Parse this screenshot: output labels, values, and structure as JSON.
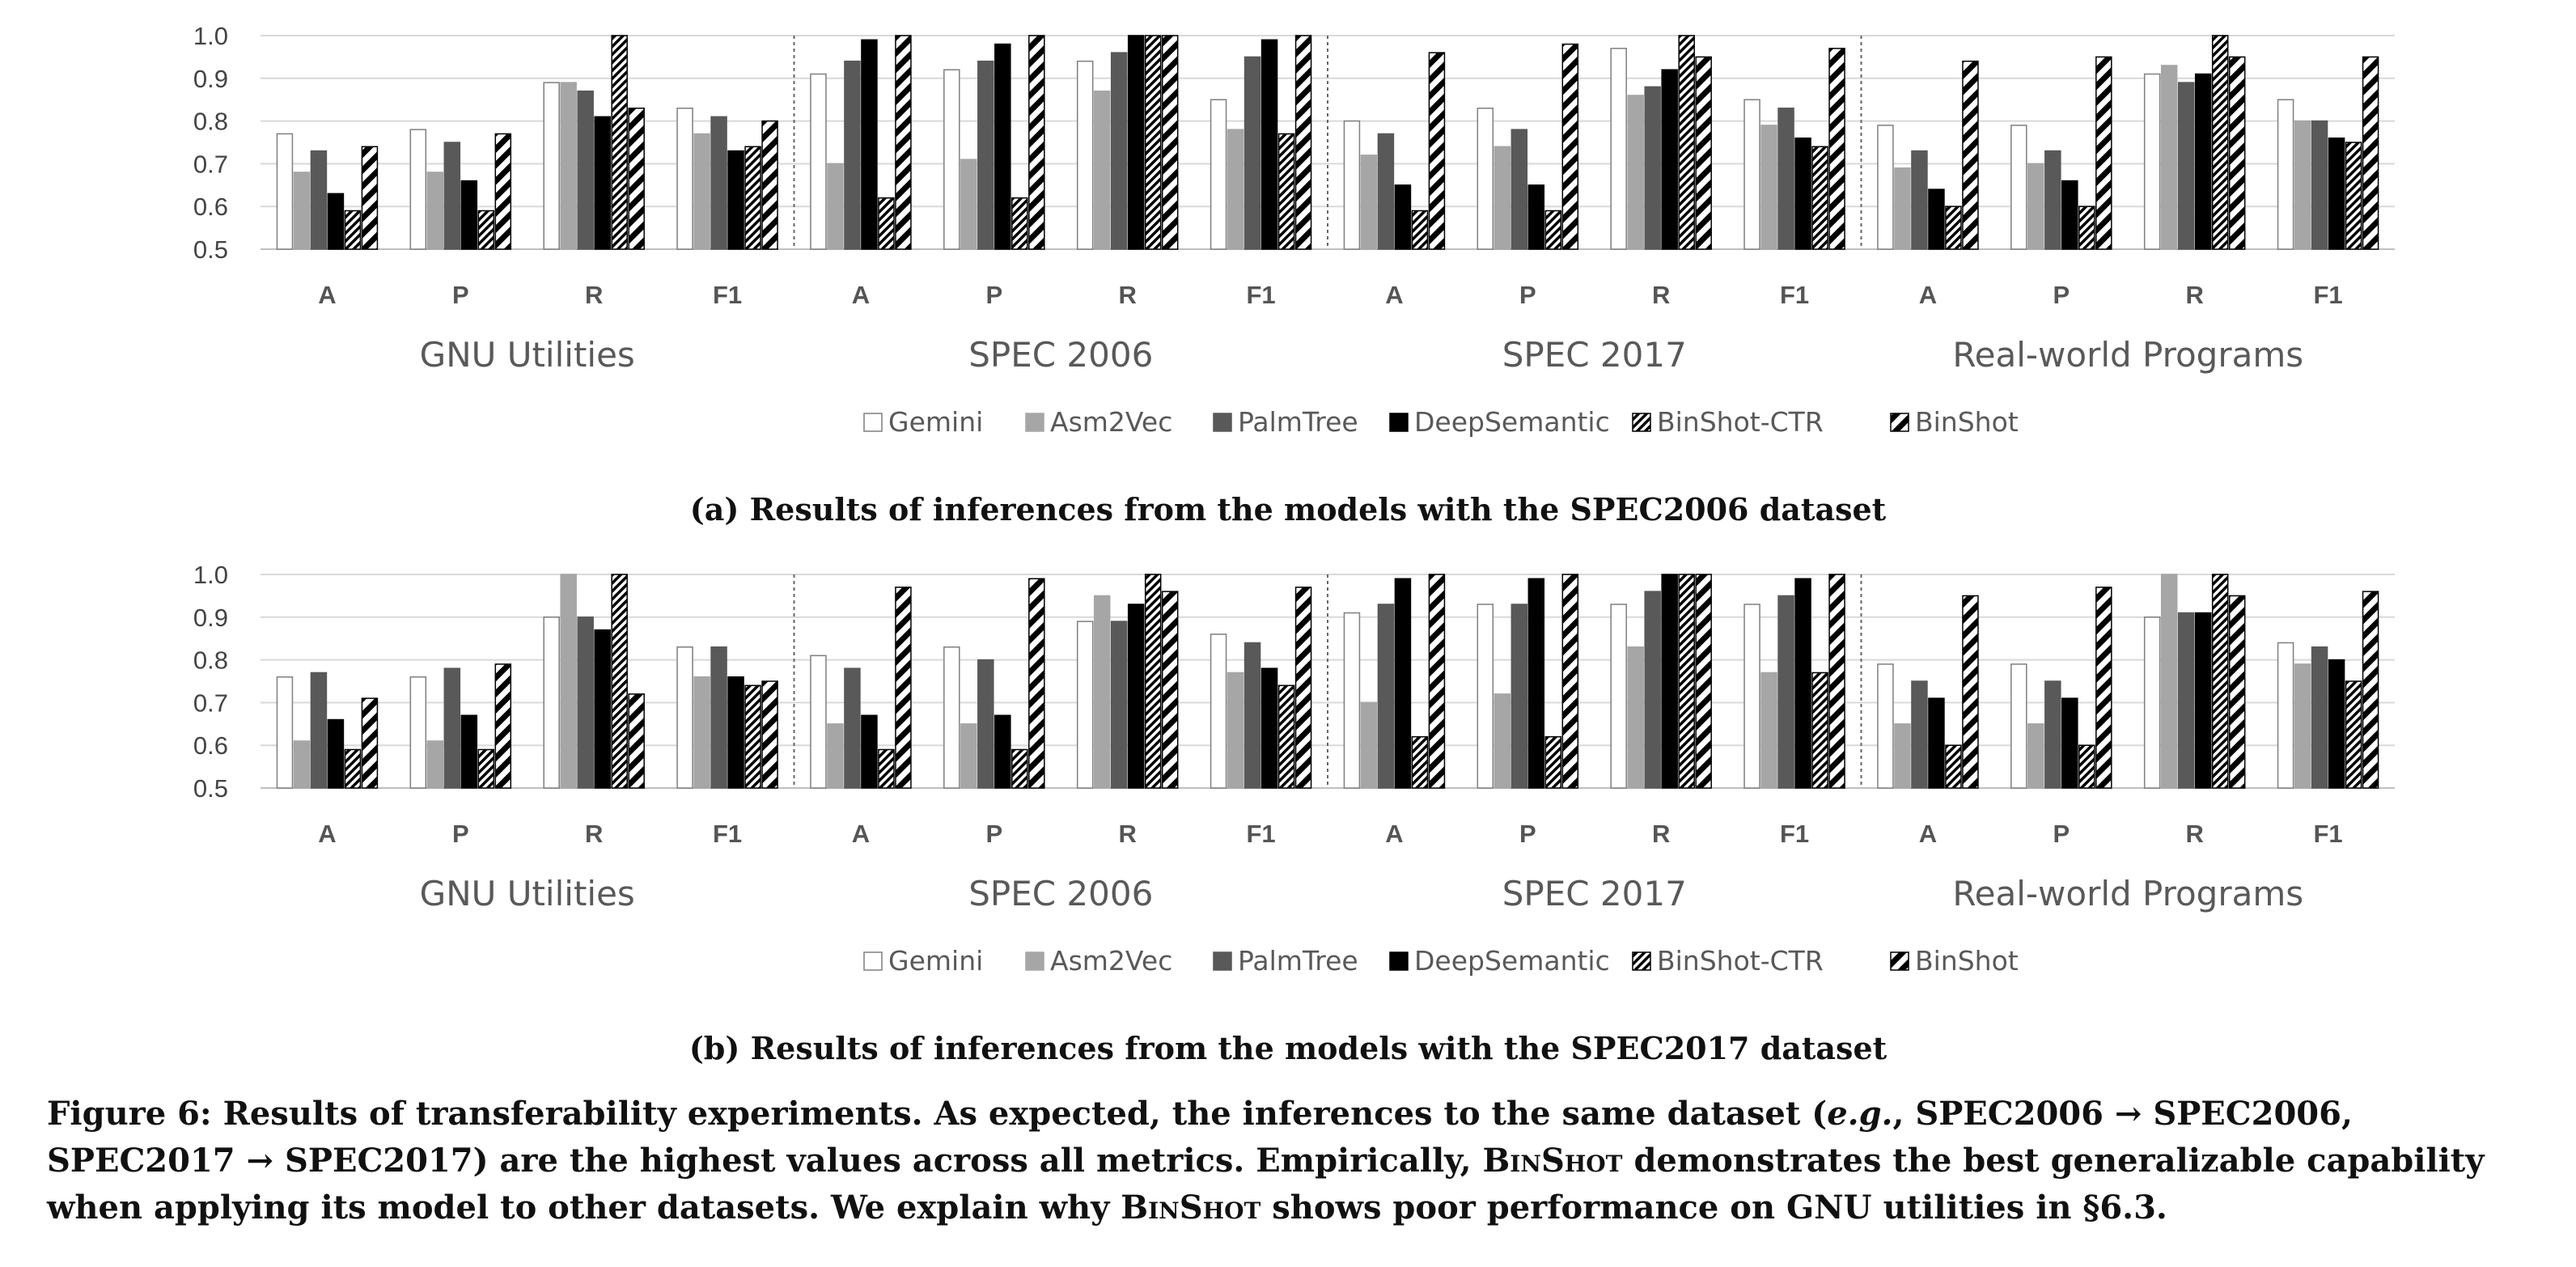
{
  "chart_data": [
    {
      "type": "bar",
      "title": "(a) Results of inferences from the models with the SPEC2006 dataset",
      "ylim": [
        0.5,
        1.0
      ],
      "yticks": [
        "0.5",
        "0.6",
        "0.7",
        "0.8",
        "0.9",
        "1.0"
      ],
      "groups": [
        "GNU Utilities",
        "SPEC 2006",
        "SPEC 2017",
        "Real-world Programs"
      ],
      "categories": [
        "A",
        "P",
        "R",
        "F1"
      ],
      "legend_position": "bottom",
      "grid": true,
      "series": [
        {
          "name": "Gemini",
          "values": [
            [
              0.77,
              0.78,
              0.89,
              0.83
            ],
            [
              0.91,
              0.92,
              0.94,
              0.85
            ],
            [
              0.8,
              0.83,
              0.97,
              0.85
            ],
            [
              0.79,
              0.79,
              0.91,
              0.85
            ]
          ]
        },
        {
          "name": "Asm2Vec",
          "values": [
            [
              0.68,
              0.68,
              0.89,
              0.77
            ],
            [
              0.7,
              0.71,
              0.87,
              0.78
            ],
            [
              0.72,
              0.74,
              0.86,
              0.79
            ],
            [
              0.69,
              0.7,
              0.93,
              0.8
            ]
          ]
        },
        {
          "name": "PalmTree",
          "values": [
            [
              0.73,
              0.75,
              0.87,
              0.81
            ],
            [
              0.94,
              0.94,
              0.96,
              0.95
            ],
            [
              0.77,
              0.78,
              0.88,
              0.83
            ],
            [
              0.73,
              0.73,
              0.89,
              0.8
            ]
          ]
        },
        {
          "name": "DeepSemantic",
          "values": [
            [
              0.63,
              0.66,
              0.81,
              0.73
            ],
            [
              0.99,
              0.98,
              1.0,
              0.99
            ],
            [
              0.65,
              0.65,
              0.92,
              0.76
            ],
            [
              0.64,
              0.66,
              0.91,
              0.76
            ]
          ]
        },
        {
          "name": "BinShot-CTR",
          "values": [
            [
              0.59,
              0.59,
              1.0,
              0.74
            ],
            [
              0.62,
              0.62,
              1.0,
              0.77
            ],
            [
              0.59,
              0.59,
              1.0,
              0.74
            ],
            [
              0.6,
              0.6,
              1.0,
              0.75
            ]
          ]
        },
        {
          "name": "BinShot",
          "values": [
            [
              0.74,
              0.77,
              0.83,
              0.8
            ],
            [
              1.0,
              1.0,
              1.0,
              1.0
            ],
            [
              0.96,
              0.98,
              0.95,
              0.97
            ],
            [
              0.94,
              0.95,
              0.95,
              0.95
            ]
          ]
        }
      ]
    },
    {
      "type": "bar",
      "title": "(b) Results of inferences from the models with the SPEC2017 dataset",
      "ylim": [
        0.5,
        1.0
      ],
      "yticks": [
        "0.5",
        "0.6",
        "0.7",
        "0.8",
        "0.9",
        "1.0"
      ],
      "groups": [
        "GNU Utilities",
        "SPEC 2006",
        "SPEC 2017",
        "Real-world Programs"
      ],
      "categories": [
        "A",
        "P",
        "R",
        "F1"
      ],
      "legend_position": "bottom",
      "grid": true,
      "series": [
        {
          "name": "Gemini",
          "values": [
            [
              0.76,
              0.76,
              0.9,
              0.83
            ],
            [
              0.81,
              0.83,
              0.89,
              0.86
            ],
            [
              0.91,
              0.93,
              0.93,
              0.93
            ],
            [
              0.79,
              0.79,
              0.9,
              0.84
            ]
          ]
        },
        {
          "name": "Asm2Vec",
          "values": [
            [
              0.61,
              0.61,
              1.0,
              0.76
            ],
            [
              0.65,
              0.65,
              0.95,
              0.77
            ],
            [
              0.7,
              0.72,
              0.83,
              0.77
            ],
            [
              0.65,
              0.65,
              1.0,
              0.79
            ]
          ]
        },
        {
          "name": "PalmTree",
          "values": [
            [
              0.77,
              0.78,
              0.9,
              0.83
            ],
            [
              0.78,
              0.8,
              0.89,
              0.84
            ],
            [
              0.93,
              0.93,
              0.96,
              0.95
            ],
            [
              0.75,
              0.75,
              0.91,
              0.83
            ]
          ]
        },
        {
          "name": "DeepSemantic",
          "values": [
            [
              0.66,
              0.67,
              0.87,
              0.76
            ],
            [
              0.67,
              0.67,
              0.93,
              0.78
            ],
            [
              0.99,
              0.99,
              1.0,
              0.99
            ],
            [
              0.71,
              0.71,
              0.91,
              0.8
            ]
          ]
        },
        {
          "name": "BinShot-CTR",
          "values": [
            [
              0.59,
              0.59,
              1.0,
              0.74
            ],
            [
              0.59,
              0.59,
              1.0,
              0.74
            ],
            [
              0.62,
              0.62,
              1.0,
              0.77
            ],
            [
              0.6,
              0.6,
              1.0,
              0.75
            ]
          ]
        },
        {
          "name": "BinShot",
          "values": [
            [
              0.71,
              0.79,
              0.72,
              0.75
            ],
            [
              0.97,
              0.99,
              0.96,
              0.97
            ],
            [
              1.0,
              1.0,
              1.0,
              1.0
            ],
            [
              0.95,
              0.97,
              0.95,
              0.96
            ]
          ]
        }
      ]
    }
  ],
  "styles": {
    "Gemini": {
      "fill": "#ffffff",
      "stroke": "#7f7f7f",
      "pattern": "none"
    },
    "Asm2Vec": {
      "fill": "#a6a6a6",
      "stroke": "#a6a6a6",
      "pattern": "none"
    },
    "PalmTree": {
      "fill": "#595959",
      "stroke": "#595959",
      "pattern": "none"
    },
    "DeepSemantic": {
      "fill": "#000000",
      "stroke": "#000000",
      "pattern": "none"
    },
    "BinShot-CTR": {
      "fill": "#ffffff",
      "stroke": "#000000",
      "pattern": "dense-diagonal"
    },
    "BinShot": {
      "fill": "#ffffff",
      "stroke": "#000000",
      "pattern": "wide-diagonal"
    }
  },
  "caption": {
    "part1": "Figure 6: Results of transferability experiments. As expected, the inferences to the same dataset (",
    "eg": "e.g.",
    "part2": ", SPEC2006 → SPEC2006, SPEC2017 → SPEC2017) are the highest values across all metrics. Empirically, ",
    "binshot1": "BinShot",
    "part3": " demonstrates the best generalizable capability when applying its model to other datasets. We explain why ",
    "binshot2": "BinShot",
    "part4": " shows poor performance on GNU utilities in §6.3."
  }
}
